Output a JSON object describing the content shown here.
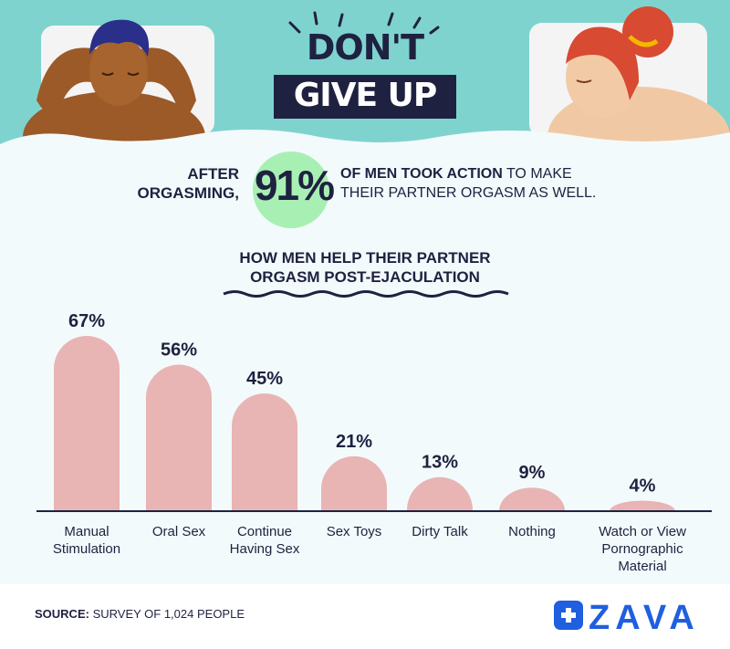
{
  "header": {
    "title_line1": "DON'T",
    "title_line2": "GIVE UP"
  },
  "stat": {
    "left_text_1": "AFTER",
    "left_text_2": "ORGASMING,",
    "value": "91%",
    "right_bold": "OF MEN TOOK ACTION",
    "right_text_1": " TO MAKE",
    "right_text_2": "THEIR PARTNER ORGASM AS WELL."
  },
  "chart_data": {
    "type": "bar",
    "title": "HOW MEN HELP THEIR PARTNER ORGASM POST-EJACULATION",
    "title_line1": "HOW MEN HELP THEIR PARTNER",
    "title_line2": "ORGASM POST-EJACULATION",
    "categories": [
      [
        "Manual",
        "Stimulation"
      ],
      [
        "Oral Sex"
      ],
      [
        "Continue",
        "Having Sex"
      ],
      [
        "Sex Toys"
      ],
      [
        "Dirty Talk"
      ],
      [
        "Nothing"
      ],
      [
        "Watch or View",
        "Pornographic",
        "Material"
      ]
    ],
    "values": [
      67,
      56,
      45,
      21,
      13,
      9,
      4
    ],
    "value_labels": [
      "67%",
      "56%",
      "45%",
      "21%",
      "13%",
      "9%",
      "4%"
    ],
    "ylim": [
      0,
      70
    ],
    "bar_color": "#e8b4b4"
  },
  "footer": {
    "source_bold": "SOURCE:",
    "source_text": " SURVEY OF 1,024 PEOPLE",
    "brand": "ZAVA"
  },
  "colors": {
    "navy": "#1f2140",
    "teal": "#7fd3cf",
    "accent_green": "#a8efb4",
    "brand_blue": "#1f5fe0"
  }
}
